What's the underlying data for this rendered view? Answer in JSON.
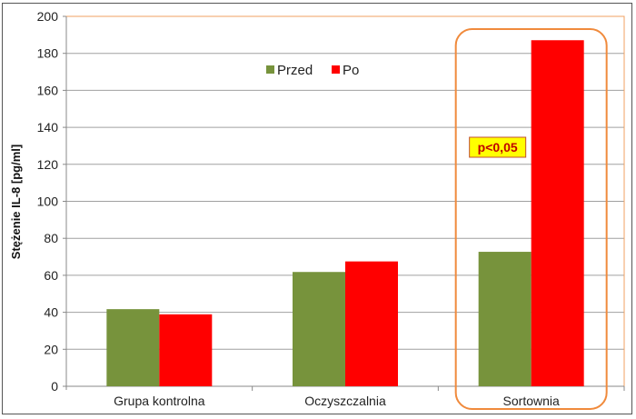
{
  "chart_data": {
    "type": "bar",
    "categories": [
      "Grupa kontrolna",
      "Oczyszczalnia",
      "Sortownia"
    ],
    "series": [
      {
        "name": "Przed",
        "values": [
          41.7,
          61.8,
          72.7
        ],
        "color": "#77933c"
      },
      {
        "name": "Po",
        "values": [
          38.9,
          67.5,
          187.1
        ],
        "color": "#ff0000"
      }
    ],
    "ylabel": "Stężenie IL-8 [pg/ml]",
    "xlabel": "",
    "ylim": [
      0,
      200
    ],
    "yticks": [
      0,
      20,
      40,
      60,
      80,
      100,
      120,
      140,
      160,
      180,
      200
    ],
    "grid": true,
    "legend_position": "top-center",
    "annotation": {
      "text": "p<0,05",
      "category": "Sortownia",
      "highlight_color": "#f08a3c",
      "box_fill": "#ffff00",
      "text_color": "#c00000"
    }
  }
}
